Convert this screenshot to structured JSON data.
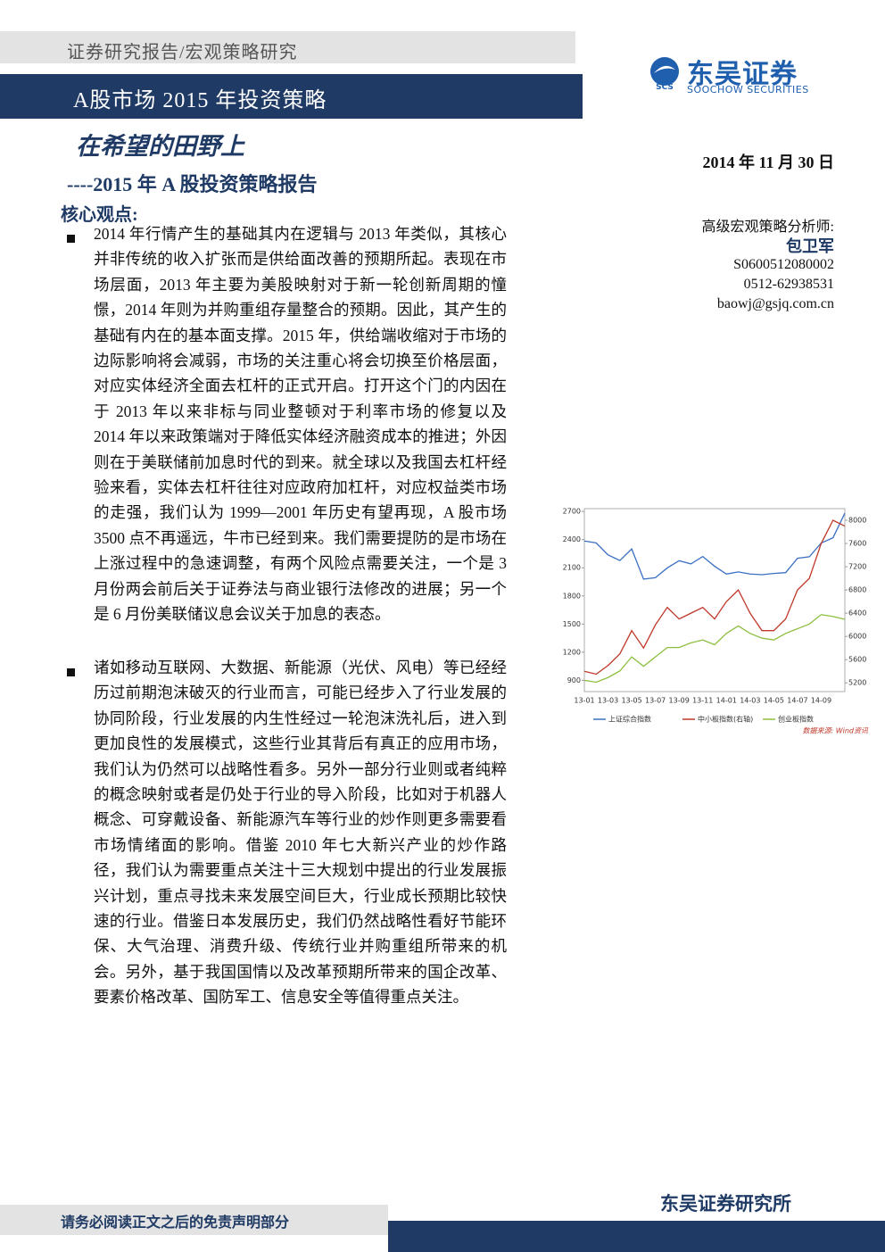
{
  "header": {
    "category": "证券研究报告/宏观策略研究",
    "banner": "A股市场 2015 年投资策略",
    "logo_name": "东吴证券",
    "logo_english": "SOOCHOW SECURITIES",
    "logo_abbr": "SCS"
  },
  "title": "在希望的田野上",
  "subtitle": "----2015 年 A 股投资策略报告",
  "date": "2014 年 11 月 30 日",
  "section_heading": "核心观点:",
  "bullets": [
    "2014 年行情产生的基础其内在逻辑与 2013 年类似，其核心并非传统的收入扩张而是供给面改善的预期所起。表现在市场层面，2013 年主要为美股映射对于新一轮创新周期的憧憬，2014 年则为并购重组存量整合的预期。因此，其产生的基础有内在的基本面支撑。2015 年，供给端收缩对于市场的边际影响将会减弱，市场的关注重心将会切换至价格层面，对应实体经济全面去杠杆的正式开启。打开这个门的内因在于 2013 年以来非标与同业整顿对于利率市场的修复以及 2014 年以来政策端对于降低实体经济融资成本的推进；外因则在于美联储前加息时代的到来。就全球以及我国去杠杆经验来看，实体去杠杆往往对应政府加杠杆，对应权益类市场的走强，我们认为 1999—2001 年历史有望再现，A 股市场 3500 点不再遥远，牛市已经到来。我们需要提防的是市场在上涨过程中的急速调整，有两个风险点需要关注，一个是 3 月份两会前后关于证券法与商业银行法修改的进展；另一个是 6 月份美联储议息会议关于加息的表态。",
    "诸如移动互联网、大数据、新能源（光伏、风电）等已经经历过前期泡沫破灭的行业而言，可能已经步入了行业发展的协同阶段，行业发展的内生性经过一轮泡沫洗礼后，进入到更加良性的发展模式，这些行业其背后有真正的应用市场，我们认为仍然可以战略性看多。另外一部分行业则或者纯粹的概念映射或者是仍处于行业的导入阶段，比如对于机器人概念、可穿戴设备、新能源汽车等行业的炒作则更多需要看市场情绪面的影响。借鉴 2010 年七大新兴产业的炒作路径，我们认为需要重点关注十三大规划中提出的行业发展振兴计划，重点寻找未来发展空间巨大，行业成长预期比较快速的行业。借鉴日本发展历史，我们仍然战略性看好节能环保、大气治理、消费升级、传统行业并购重组所带来的机会。另外，基于我国国情以及改革预期所带来的国企改革、要素价格改革、国防军工、信息安全等值得重点关注。"
  ],
  "analyst": {
    "role": "高级宏观策略分析师:",
    "name": "包卫军",
    "license": "S0600512080002",
    "phone": "0512-62938531",
    "email": "baowj@gsjq.com.cn"
  },
  "chart_data": {
    "type": "line",
    "categories": [
      "13-01",
      null,
      "13-03",
      null,
      "13-05",
      null,
      "13-07",
      null,
      "13-09",
      null,
      "13-11",
      null,
      "14-01",
      null,
      "14-03",
      null,
      "14-05",
      null,
      "14-07",
      null,
      "14-09",
      null,
      null
    ],
    "series": [
      {
        "name": "上证综合指数",
        "color": "#3a6fc4",
        "values": [
          2385,
          2365,
          2237,
          2177,
          2301,
          1979,
          1994,
          2098,
          2175,
          2141,
          2220,
          2116,
          2033,
          2056,
          2033,
          2026,
          2039,
          2048,
          2201,
          2217,
          2364,
          2420,
          2682
        ]
      },
      {
        "name": "中小板指数(右轴)",
        "color": "#c0392b",
        "axis": "y2",
        "values": [
          5400,
          5350,
          5500,
          5700,
          6100,
          5800,
          6200,
          6500,
          6300,
          6400,
          6500,
          6300,
          6600,
          6800,
          6400,
          6100,
          6100,
          6300,
          6800,
          7000,
          7600,
          8000,
          7900
        ]
      },
      {
        "name": "创业板指数",
        "color": "#8cbf3f",
        "values": [
          900,
          880,
          930,
          1000,
          1150,
          1050,
          1150,
          1250,
          1250,
          1300,
          1330,
          1280,
          1400,
          1480,
          1400,
          1350,
          1330,
          1400,
          1450,
          1500,
          1600,
          1580,
          1550
        ]
      }
    ],
    "ylim": [
      780,
      2730
    ],
    "yticks": [
      900,
      1200,
      1500,
      1800,
      2100,
      2400,
      2700
    ],
    "y2lim": [
      5050,
      8200
    ],
    "y2ticks": [
      5200,
      5600,
      6000,
      6400,
      6800,
      7200,
      7600,
      8000
    ],
    "source": "数据来源: Wind资讯"
  },
  "footer": {
    "disclaimer": "请务必阅读正文之后的免责声明部分",
    "institute": "东吴证券研究所"
  }
}
